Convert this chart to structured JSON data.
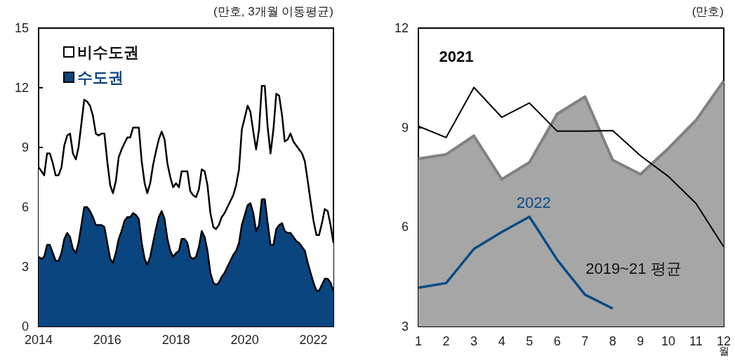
{
  "chart_data": [
    {
      "type": "area",
      "stacked": true,
      "ylabel": "(만호, 3개월 이동평균)",
      "legend": "top left",
      "x": [
        "2014-01",
        "2014-02",
        "2014-03",
        "2014-04",
        "2014-05",
        "2014-06",
        "2014-07",
        "2014-08",
        "2014-09",
        "2014-10",
        "2014-11",
        "2014-12",
        "2015-01",
        "2015-02",
        "2015-03",
        "2015-04",
        "2015-05",
        "2015-06",
        "2015-07",
        "2015-08",
        "2015-09",
        "2015-10",
        "2015-11",
        "2015-12",
        "2016-01",
        "2016-02",
        "2016-03",
        "2016-04",
        "2016-05",
        "2016-06",
        "2016-07",
        "2016-08",
        "2016-09",
        "2016-10",
        "2016-11",
        "2016-12",
        "2017-01",
        "2017-02",
        "2017-03",
        "2017-04",
        "2017-05",
        "2017-06",
        "2017-07",
        "2017-08",
        "2017-09",
        "2017-10",
        "2017-11",
        "2017-12",
        "2018-01",
        "2018-02",
        "2018-03",
        "2018-04",
        "2018-05",
        "2018-06",
        "2018-07",
        "2018-08",
        "2018-09",
        "2018-10",
        "2018-11",
        "2018-12",
        "2019-01",
        "2019-02",
        "2019-03",
        "2019-04",
        "2019-05",
        "2019-06",
        "2019-07",
        "2019-08",
        "2019-09",
        "2019-10",
        "2019-11",
        "2019-12",
        "2020-01",
        "2020-02",
        "2020-03",
        "2020-04",
        "2020-05",
        "2020-06",
        "2020-07",
        "2020-08",
        "2020-09",
        "2020-10",
        "2020-11",
        "2020-12",
        "2021-01",
        "2021-02",
        "2021-03",
        "2021-04",
        "2021-05",
        "2021-06",
        "2021-07",
        "2021-08",
        "2021-09",
        "2021-10",
        "2021-11",
        "2021-12",
        "2022-01",
        "2022-02",
        "2022-03",
        "2022-04",
        "2022-05",
        "2022-06",
        "2022-07",
        "2022-08"
      ],
      "series": [
        {
          "name": "수도권",
          "color": "#0a4580",
          "values": [
            3.5,
            3.4,
            3.5,
            4.1,
            4.1,
            3.7,
            3.3,
            3.3,
            3.7,
            4.4,
            4.7,
            4.5,
            3.9,
            3.7,
            4.2,
            5.1,
            6.0,
            6.0,
            5.8,
            5.5,
            5.1,
            5.1,
            5.1,
            5.0,
            4.2,
            3.4,
            3.2,
            3.7,
            4.4,
            4.8,
            5.3,
            5.5,
            5.5,
            5.7,
            5.6,
            5.4,
            4.2,
            3.4,
            3.1,
            3.5,
            4.2,
            4.9,
            5.5,
            5.8,
            5.4,
            4.4,
            3.8,
            3.5,
            3.7,
            3.8,
            4.4,
            4.4,
            4.2,
            3.5,
            3.4,
            3.5,
            4.0,
            4.8,
            4.5,
            3.8,
            2.7,
            2.2,
            2.1,
            2.2,
            2.5,
            2.7,
            3.0,
            3.3,
            3.6,
            3.8,
            4.2,
            5.1,
            5.6,
            6.1,
            6.2,
            5.7,
            4.8,
            5.1,
            6.4,
            6.4,
            5.2,
            4.1,
            4.1,
            4.9,
            5.1,
            5.2,
            4.8,
            4.7,
            4.7,
            4.5,
            4.3,
            4.2,
            4.0,
            3.8,
            3.2,
            2.7,
            2.2,
            1.8,
            1.8,
            2.1,
            2.4,
            2.4,
            2.2,
            1.8
          ]
        },
        {
          "name": "비수도권",
          "color": "#ffffff",
          "values": [
            4.5,
            4.4,
            4.1,
            4.6,
            4.6,
            4.5,
            4.3,
            4.3,
            4.3,
            4.7,
            4.9,
            5.2,
            4.8,
            4.7,
            4.8,
            5.1,
            5.4,
            5.3,
            5.3,
            5.1,
            4.6,
            4.5,
            4.6,
            4.7,
            4.1,
            3.7,
            3.5,
            3.6,
            4.1,
            4.1,
            3.9,
            4.0,
            4.0,
            4.3,
            4.4,
            4.6,
            4.1,
            3.8,
            3.6,
            3.7,
            3.9,
            3.9,
            3.9,
            4.0,
            4.0,
            3.8,
            3.7,
            3.5,
            3.5,
            3.2,
            3.4,
            3.4,
            3.6,
            3.3,
            3.2,
            3.0,
            2.9,
            3.1,
            3.3,
            3.3,
            3.0,
            2.8,
            2.8,
            2.9,
            3.0,
            3.0,
            3.0,
            3.0,
            3.0,
            3.3,
            3.7,
            4.8,
            4.9,
            5.0,
            4.6,
            4.1,
            4.1,
            4.8,
            5.7,
            5.7,
            4.8,
            4.6,
            5.8,
            6.8,
            6.5,
            5.4,
            4.5,
            4.7,
            5.0,
            4.8,
            4.8,
            4.7,
            4.7,
            4.5,
            4.1,
            3.6,
            3.1,
            2.8,
            2.8,
            3.1,
            3.5,
            3.4,
            2.9,
            2.4
          ]
        }
      ],
      "xlim": [
        "2014-01",
        "2022-08"
      ],
      "xticks": [
        "2014",
        "2016",
        "2018",
        "2020",
        "2022"
      ],
      "ylim": [
        0,
        15
      ],
      "yticks": [
        0,
        3,
        6,
        9,
        12,
        15
      ]
    },
    {
      "type": "area",
      "ylabel": "(만호)",
      "xlabel": "월",
      "categories": [
        "1",
        "2",
        "3",
        "4",
        "5",
        "6",
        "7",
        "8",
        "9",
        "10",
        "11",
        "12"
      ],
      "series": [
        {
          "name": "2019~21 평균",
          "color": "#a6a6a6",
          "values": [
            8.06,
            8.19,
            8.75,
            7.44,
            7.95,
            9.41,
            9.93,
            8.02,
            7.59,
            8.37,
            9.22,
            10.41
          ]
        },
        {
          "name": "2021",
          "type": "line",
          "color": "#000000",
          "values": [
            9.04,
            8.7,
            10.21,
            9.31,
            9.74,
            8.89,
            8.89,
            8.91,
            8.15,
            7.53,
            6.71,
            5.4
          ]
        },
        {
          "name": "2022",
          "type": "line",
          "color": "#0a4a84",
          "values": [
            4.17,
            4.31,
            5.34,
            5.85,
            6.31,
            5.01,
            3.96,
            3.54,
            null,
            null,
            null,
            null
          ]
        }
      ],
      "ylim": [
        3,
        12
      ],
      "yticks": [
        3,
        6,
        9,
        12
      ]
    }
  ]
}
